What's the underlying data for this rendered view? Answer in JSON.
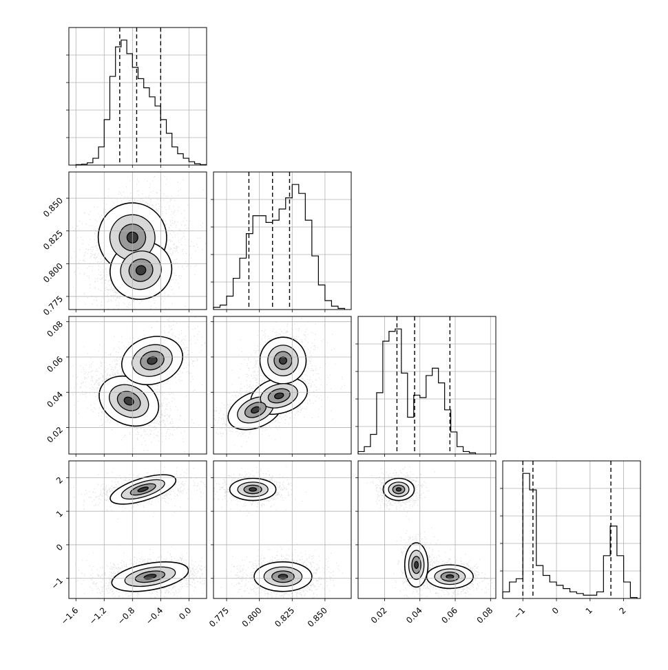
{
  "chart_data": {
    "type": "corner",
    "title": "",
    "n_params": 4,
    "params": [
      {
        "label": "",
        "range": [
          -1.7,
          0.25
        ],
        "ticks": [
          -1.6,
          -1.2,
          -0.8,
          -0.4,
          0.0
        ],
        "tick_labels": [
          "−1.6",
          "−1.2",
          "−0.8",
          "−0.4",
          "0.0"
        ],
        "quantiles": [
          -0.98,
          -0.74,
          -0.4
        ],
        "hist": {
          "edges_start": -1.6,
          "bin_width": 0.08,
          "counts": [
            0.2,
            0.4,
            1,
            3,
            8,
            20,
            39,
            52,
            55,
            49,
            43,
            38,
            34,
            30,
            26,
            20,
            14,
            8,
            5,
            3,
            1.5,
            0.6,
            0.2
          ]
        }
      },
      {
        "label": "",
        "range": [
          0.765,
          0.87
        ],
        "ticks": [
          0.775,
          0.8,
          0.825,
          0.85
        ],
        "tick_labels": [
          "0.775",
          "0.800",
          "0.825",
          "0.850"
        ],
        "quantiles": [
          0.792,
          0.81,
          0.823
        ],
        "hist": {
          "edges_start": 0.765,
          "bin_width": 0.005,
          "counts": [
            1,
            2,
            6,
            14,
            23,
            34,
            42,
            42,
            39,
            40,
            45,
            50,
            56,
            52,
            40,
            24,
            11,
            4,
            1.5,
            0.5
          ]
        }
      },
      {
        "label": "",
        "range": [
          0.005,
          0.083
        ],
        "ticks": [
          0.02,
          0.04,
          0.06,
          0.08
        ],
        "tick_labels": [
          "0.02",
          "0.04",
          "0.06",
          "0.08"
        ],
        "quantiles": [
          0.027,
          0.037,
          0.057
        ],
        "hist": {
          "edges_start": 0.005,
          "bin_width": 0.0035,
          "counts": [
            1,
            3,
            8,
            25,
            46,
            50,
            51,
            33,
            15,
            24,
            23,
            32,
            35,
            29,
            18,
            9,
            3,
            1,
            0.5
          ]
        }
      },
      {
        "label": "",
        "range": [
          -1.6,
          2.5
        ],
        "ticks": [
          -1,
          0,
          1,
          2
        ],
        "tick_labels": [
          "−1",
          "0",
          "1",
          "2"
        ],
        "quantiles": [
          -1.0,
          -0.7,
          1.62
        ],
        "hist": {
          "edges_start": -1.6,
          "bin_width": 0.2,
          "counts": [
            2,
            5,
            6,
            38,
            33,
            10,
            7,
            5,
            4,
            3,
            2,
            1.5,
            1,
            1,
            2,
            13,
            22,
            13,
            5,
            0.3
          ]
        }
      }
    ],
    "pairs": [
      {
        "row": 1,
        "col": 0,
        "modes": [
          {
            "x": -0.8,
            "y": 0.82,
            "sx": 0.22,
            "sy": 0.012,
            "rho": 0.25,
            "w": 0.55
          },
          {
            "x": -0.68,
            "y": 0.795,
            "sx": 0.2,
            "sy": 0.01,
            "rho": 0.4,
            "w": 0.45
          }
        ]
      },
      {
        "row": 2,
        "col": 0,
        "modes": [
          {
            "x": -0.85,
            "y": 0.035,
            "sx": 0.2,
            "sy": 0.006,
            "rho": -0.55,
            "w": 0.62
          },
          {
            "x": -0.52,
            "y": 0.058,
            "sx": 0.2,
            "sy": 0.006,
            "rho": 0.35,
            "w": 0.38
          }
        ]
      },
      {
        "row": 2,
        "col": 1,
        "modes": [
          {
            "x": 0.797,
            "y": 0.03,
            "sx": 0.01,
            "sy": 0.0045,
            "rho": 0.5,
            "w": 0.3
          },
          {
            "x": 0.815,
            "y": 0.038,
            "sx": 0.01,
            "sy": 0.0045,
            "rho": 0.3,
            "w": 0.32
          },
          {
            "x": 0.818,
            "y": 0.058,
            "sx": 0.008,
            "sy": 0.006,
            "rho": 0.2,
            "w": 0.38
          }
        ]
      },
      {
        "row": 3,
        "col": 0,
        "modes": [
          {
            "x": -0.55,
            "y": -0.95,
            "sx": 0.25,
            "sy": 0.18,
            "rho": 0.2,
            "w": 0.62
          },
          {
            "x": -0.65,
            "y": 1.65,
            "sx": 0.22,
            "sy": 0.15,
            "rho": 0.35,
            "w": 0.38
          }
        ]
      },
      {
        "row": 3,
        "col": 1,
        "modes": [
          {
            "x": 0.818,
            "y": -0.95,
            "sx": 0.01,
            "sy": 0.2,
            "rho": 0.0,
            "w": 0.62
          },
          {
            "x": 0.795,
            "y": 1.65,
            "sx": 0.008,
            "sy": 0.15,
            "rho": 0.0,
            "w": 0.38
          }
        ]
      },
      {
        "row": 3,
        "col": 2,
        "modes": [
          {
            "x": 0.057,
            "y": -0.95,
            "sx": 0.006,
            "sy": 0.16,
            "rho": 0.0,
            "w": 0.4
          },
          {
            "x": 0.038,
            "y": -0.6,
            "sx": 0.003,
            "sy": 0.3,
            "rho": 0.0,
            "w": 0.22
          },
          {
            "x": 0.028,
            "y": 1.65,
            "sx": 0.004,
            "sy": 0.15,
            "rho": 0.0,
            "w": 0.38
          }
        ]
      }
    ],
    "grid": true,
    "legend": "none"
  }
}
